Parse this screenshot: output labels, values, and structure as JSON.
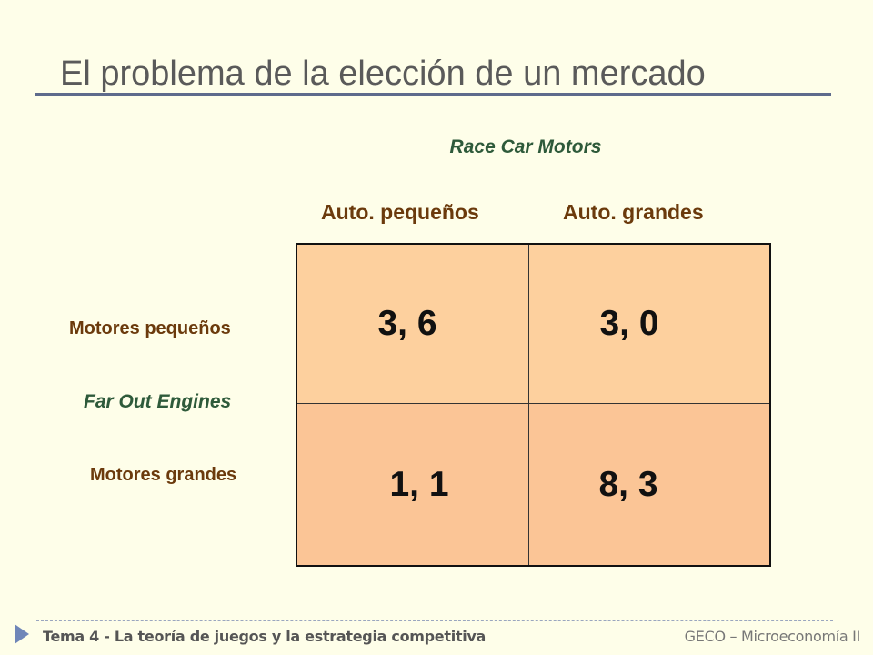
{
  "slide": {
    "title": "El problema de la elección de un mercado"
  },
  "game": {
    "column_player": "Race Car Motors",
    "row_player": "Far Out Engines",
    "column_strategies": [
      "Auto. pequeños",
      "Auto. grandes"
    ],
    "row_strategies": [
      "Motores pequeños",
      "Motores grandes"
    ],
    "payoffs": [
      [
        "3, 6",
        "3, 0"
      ],
      [
        "1, 1",
        "8, 3"
      ]
    ]
  },
  "footer": {
    "left": "Tema 4 - La teoría de juegos y la estrategia competitiva",
    "right": "GECO – Microeconomía II"
  },
  "colors": {
    "background": "#fefee9",
    "cell_fill": "#fdd09e",
    "player_label": "#2e5a3a",
    "strategy_label": "#6b3a0c",
    "title_rule": "#5e6b8c",
    "footer_arrow": "#6f86b8"
  }
}
